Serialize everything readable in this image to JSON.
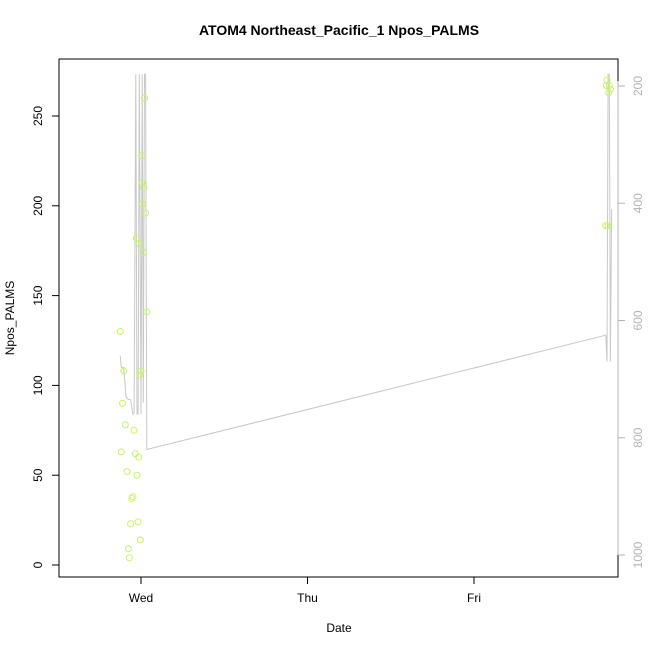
{
  "chart_data": {
    "type": "scatter",
    "title": "ATOM4 Northeast_Pacific_1 Npos_PALMS",
    "xlabel": "Date",
    "ylabel": "Npos_PALMS",
    "x_ticks": [
      "Wed",
      "Thu",
      "Fri"
    ],
    "ylim": [
      -5,
      280
    ],
    "y_ticks": [
      0,
      50,
      100,
      150,
      200,
      250
    ],
    "y2lim": [
      1020,
      180
    ],
    "y2_ticks": [
      200,
      400,
      600,
      800,
      1000
    ],
    "colors": {
      "points": "#c8f560",
      "depth_line": "#c8c8c8",
      "axis": "#000000",
      "right_axis": "#b3b3b3"
    },
    "series": [
      {
        "values": [
          {
            "x": "Tue 21:00",
            "y": 130
          },
          {
            "x": "Tue 21:10",
            "y": 63
          },
          {
            "x": "Tue 21:20",
            "y": 90
          },
          {
            "x": "Tue 21:30",
            "y": 108
          },
          {
            "x": "Tue 21:45",
            "y": 78
          },
          {
            "x": "Tue 22:00",
            "y": 52
          },
          {
            "x": "Tue 22:10",
            "y": 9
          },
          {
            "x": "Tue 22:20",
            "y": 4
          },
          {
            "x": "Tue 22:30",
            "y": 23
          },
          {
            "x": "Tue 22:40",
            "y": 37
          },
          {
            "x": "Tue 22:50",
            "y": 38
          },
          {
            "x": "Tue 23:00",
            "y": 75
          },
          {
            "x": "Tue 23:10",
            "y": 62
          },
          {
            "x": "Tue 23:20",
            "y": 182
          },
          {
            "x": "Tue 23:25",
            "y": 50
          },
          {
            "x": "Tue 23:35",
            "y": 24
          },
          {
            "x": "Tue 23:40",
            "y": 60
          },
          {
            "x": "Tue 23:45",
            "y": 179
          },
          {
            "x": "Tue 23:50",
            "y": 106
          },
          {
            "x": "Tue 23:55",
            "y": 14
          },
          {
            "x": "Wed 00:00",
            "y": 108
          },
          {
            "x": "Wed 00:05",
            "y": 228
          },
          {
            "x": "Wed 00:10",
            "y": 213
          },
          {
            "x": "Wed 00:15",
            "y": 201
          },
          {
            "x": "Wed 00:20",
            "y": 174
          },
          {
            "x": "Wed 00:25",
            "y": 210
          },
          {
            "x": "Wed 00:30",
            "y": 260
          },
          {
            "x": "Wed 00:40",
            "y": 196
          },
          {
            "x": "Wed 00:50",
            "y": 141
          },
          {
            "x": "Fri 19:00",
            "y": 189
          },
          {
            "x": "Fri 19:05",
            "y": 267
          },
          {
            "x": "Fri 19:10",
            "y": 270
          },
          {
            "x": "Fri 19:20",
            "y": 189
          },
          {
            "x": "Fri 19:25",
            "y": 263
          },
          {
            "x": "Fri 19:30",
            "y": 267
          },
          {
            "x": "Fri 19:40",
            "y": 265
          }
        ]
      },
      {
        "axis": "right",
        "values": [
          {
            "x": "Tue 21:00",
            "y": 660
          },
          {
            "x": "Tue 21:10",
            "y": 680
          },
          {
            "x": "Tue 21:30",
            "y": 680
          },
          {
            "x": "Tue 21:50",
            "y": 730
          },
          {
            "x": "Tue 22:10",
            "y": 735
          },
          {
            "x": "Tue 22:30",
            "y": 735
          },
          {
            "x": "Tue 22:50",
            "y": 760
          },
          {
            "x": "Tue 23:00",
            "y": 758
          },
          {
            "x": "Tue 23:15",
            "y": 180
          },
          {
            "x": "Tue 23:25",
            "y": 760
          },
          {
            "x": "Tue 23:35",
            "y": 760
          },
          {
            "x": "Tue 23:45",
            "y": 180
          },
          {
            "x": "Wed 00:00",
            "y": 760
          },
          {
            "x": "Wed 00:10",
            "y": 180
          },
          {
            "x": "Wed 00:20",
            "y": 740
          },
          {
            "x": "Wed 00:30",
            "y": 180
          },
          {
            "x": "Wed 00:40",
            "y": 180
          },
          {
            "x": "Wed 00:50",
            "y": 820
          },
          {
            "x": "Fri 19:00",
            "y": 625
          },
          {
            "x": "Fri 19:10",
            "y": 670
          },
          {
            "x": "Fri 19:20",
            "y": 180
          },
          {
            "x": "Fri 19:30",
            "y": 180
          },
          {
            "x": "Fri 19:40",
            "y": 670
          },
          {
            "x": "Fri 19:50",
            "y": 410
          }
        ]
      }
    ]
  }
}
